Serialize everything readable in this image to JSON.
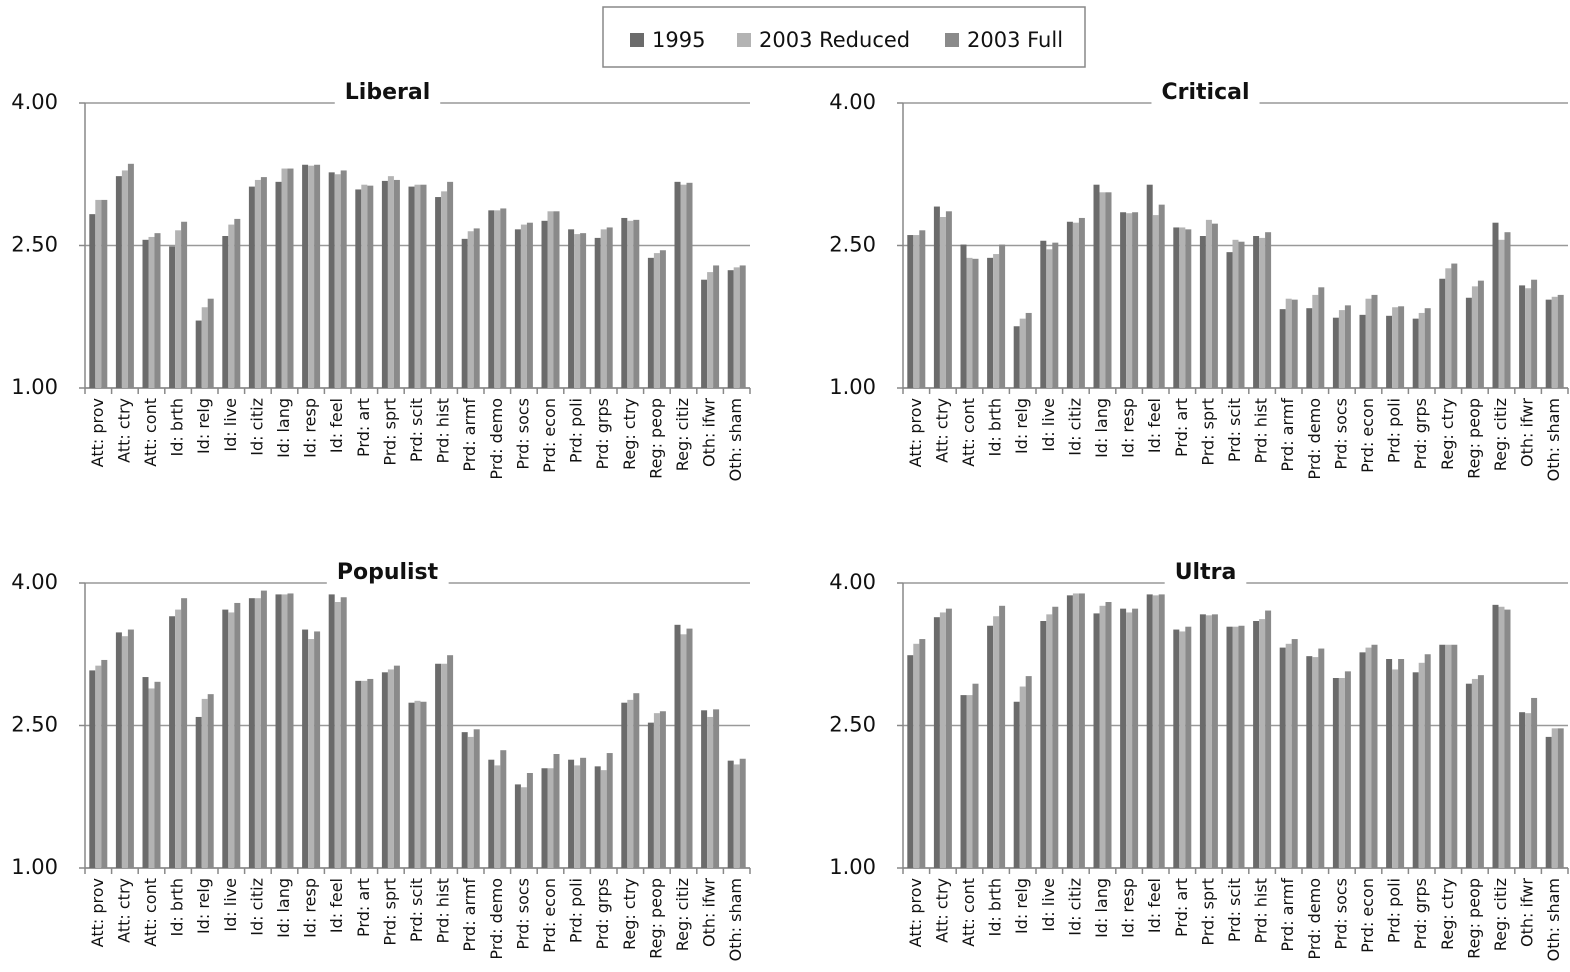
{
  "chart_data": [
    {
      "type": "bar",
      "title": "Liberal",
      "categories": [
        "Att: prov",
        "Att: ctry",
        "Att: cont",
        "Id: brth",
        "Id: relg",
        "Id: live",
        "Id: citiz",
        "Id: lang",
        "Id: resp",
        "Id: feel",
        "Prd: art",
        "Prd: sprt",
        "Prd: scit",
        "Prd: hist",
        "Prd: armf",
        "Prd: demo",
        "Prd: socs",
        "Prd: econ",
        "Prd: poli",
        "Prd: grps",
        "Reg: ctry",
        "Reg: peop",
        "Reg: citiz",
        "Oth: ifwr",
        "Oth: sham"
      ],
      "series": [
        {
          "name": "1995",
          "color": "#6b6b6b",
          "values": [
            2.83,
            3.23,
            2.56,
            2.49,
            1.71,
            2.6,
            3.12,
            3.17,
            3.35,
            3.27,
            3.09,
            3.18,
            3.12,
            3.01,
            2.57,
            2.87,
            2.67,
            2.76,
            2.67,
            2.58,
            2.79,
            2.37,
            3.17,
            2.14,
            2.24
          ]
        },
        {
          "name": "2003 Reduced",
          "color": "#b3b3b3",
          "values": [
            2.98,
            3.29,
            2.59,
            2.66,
            1.85,
            2.72,
            3.19,
            3.31,
            3.34,
            3.25,
            3.14,
            3.23,
            3.14,
            3.07,
            2.65,
            2.87,
            2.72,
            2.86,
            2.62,
            2.67,
            2.76,
            2.42,
            3.14,
            2.22,
            2.27
          ]
        },
        {
          "name": "2003 Full",
          "color": "#8a8a8a",
          "values": [
            2.98,
            3.36,
            2.63,
            2.75,
            1.94,
            2.78,
            3.22,
            3.31,
            3.35,
            3.29,
            3.13,
            3.19,
            3.14,
            3.17,
            2.68,
            2.89,
            2.74,
            2.86,
            2.63,
            2.69,
            2.77,
            2.45,
            3.16,
            2.29,
            2.29
          ]
        }
      ],
      "ylim": [
        1,
        4
      ],
      "yticks": [
        {
          "value": 1,
          "label": "1.00"
        },
        {
          "value": 2.5,
          "label": "2.50"
        },
        {
          "value": 4,
          "label": "4.00"
        }
      ],
      "grid": true
    },
    {
      "type": "bar",
      "title": "Critical",
      "categories": [
        "Att: prov",
        "Att: ctry",
        "Att: cont",
        "Id: brth",
        "Id: relg",
        "Id: live",
        "Id: citiz",
        "Id: lang",
        "Id: resp",
        "Id: feel",
        "Prd: art",
        "Prd: sprt",
        "Prd: scit",
        "Prd: hist",
        "Prd: armf",
        "Prd: demo",
        "Prd: socs",
        "Prd: econ",
        "Prd: poli",
        "Prd: grps",
        "Reg: ctry",
        "Reg: peop",
        "Reg: citiz",
        "Oth: ifwr",
        "Oth: sham"
      ],
      "series": [
        {
          "name": "1995",
          "color": "#6b6b6b",
          "values": [
            2.61,
            2.91,
            2.51,
            2.37,
            1.65,
            2.55,
            2.75,
            3.14,
            2.85,
            3.14,
            2.69,
            2.6,
            2.43,
            2.6,
            1.83,
            1.84,
            1.74,
            1.77,
            1.76,
            1.73,
            2.15,
            1.95,
            2.74,
            2.08,
            1.93
          ]
        },
        {
          "name": "2003 Reduced",
          "color": "#b3b3b3",
          "values": [
            2.61,
            2.8,
            2.37,
            2.41,
            1.73,
            2.46,
            2.74,
            3.06,
            2.84,
            2.82,
            2.69,
            2.77,
            2.56,
            2.58,
            1.94,
            1.98,
            1.82,
            1.94,
            1.85,
            1.79,
            2.26,
            2.07,
            2.56,
            2.05,
            1.96
          ]
        },
        {
          "name": "2003 Full",
          "color": "#8a8a8a",
          "values": [
            2.66,
            2.86,
            2.36,
            2.51,
            1.79,
            2.53,
            2.79,
            3.06,
            2.85,
            2.93,
            2.67,
            2.73,
            2.54,
            2.64,
            1.93,
            2.06,
            1.87,
            1.98,
            1.86,
            1.84,
            2.31,
            2.13,
            2.64,
            2.14,
            1.98
          ]
        }
      ],
      "ylim": [
        1,
        4
      ],
      "yticks": [
        {
          "value": 1,
          "label": "1.00"
        },
        {
          "value": 2.5,
          "label": "2.50"
        },
        {
          "value": 4,
          "label": "4.00"
        }
      ],
      "grid": true
    },
    {
      "type": "bar",
      "title": "Populist",
      "categories": [
        "Att: prov",
        "Att: ctry",
        "Att: cont",
        "Id: brth",
        "Id: relg",
        "Id: live",
        "Id: citiz",
        "Id: lang",
        "Id: resp",
        "Id: feel",
        "Prd: art",
        "Prd: sprt",
        "Prd: scit",
        "Prd: hist",
        "Prd: armf",
        "Prd: demo",
        "Prd: socs",
        "Prd: econ",
        "Prd: poli",
        "Prd: grps",
        "Reg: ctry",
        "Reg: peop",
        "Reg: citiz",
        "Oth: ifwr",
        "Oth: sham"
      ],
      "series": [
        {
          "name": "1995",
          "color": "#6b6b6b",
          "values": [
            3.08,
            3.48,
            3.01,
            3.65,
            2.59,
            3.72,
            3.84,
            3.88,
            3.51,
            3.88,
            2.97,
            3.06,
            2.74,
            3.15,
            2.43,
            2.14,
            1.88,
            2.05,
            2.14,
            2.07,
            2.74,
            2.53,
            3.56,
            2.66,
            2.13
          ]
        },
        {
          "name": "2003 Reduced",
          "color": "#b3b3b3",
          "values": [
            3.13,
            3.44,
            2.89,
            3.72,
            2.78,
            3.69,
            3.84,
            3.88,
            3.41,
            3.8,
            2.97,
            3.09,
            2.76,
            3.15,
            2.38,
            2.08,
            1.85,
            2.05,
            2.08,
            2.03,
            2.77,
            2.63,
            3.46,
            2.59,
            2.09
          ]
        },
        {
          "name": "2003 Full",
          "color": "#8a8a8a",
          "values": [
            3.19,
            3.51,
            2.96,
            3.84,
            2.83,
            3.79,
            3.92,
            3.89,
            3.49,
            3.85,
            2.99,
            3.13,
            2.75,
            3.24,
            2.46,
            2.24,
            2.0,
            2.2,
            2.16,
            2.21,
            2.84,
            2.65,
            3.52,
            2.67,
            2.15
          ]
        }
      ],
      "ylim": [
        1,
        4
      ],
      "yticks": [
        {
          "value": 1,
          "label": "1.00"
        },
        {
          "value": 2.5,
          "label": "2.50"
        },
        {
          "value": 4,
          "label": "4.00"
        }
      ],
      "grid": true
    },
    {
      "type": "bar",
      "title": "Ultra",
      "categories": [
        "Att: prov",
        "Att: ctry",
        "Att: cont",
        "Id: brth",
        "Id: relg",
        "Id: live",
        "Id: citiz",
        "Id: lang",
        "Id: resp",
        "Id: feel",
        "Prd: art",
        "Prd: sprt",
        "Prd: scit",
        "Prd: hist",
        "Prd: armf",
        "Prd: demo",
        "Prd: socs",
        "Prd: econ",
        "Prd: poli",
        "Prd: grps",
        "Reg: ctry",
        "Reg: peop",
        "Reg: citiz",
        "Oth: ifwr",
        "Oth: sham"
      ],
      "series": [
        {
          "name": "1995",
          "color": "#6b6b6b",
          "values": [
            3.24,
            3.64,
            2.82,
            3.55,
            2.75,
            3.6,
            3.87,
            3.68,
            3.73,
            3.88,
            3.51,
            3.67,
            3.54,
            3.6,
            3.32,
            3.23,
            3.0,
            3.27,
            3.2,
            3.06,
            3.35,
            2.94,
            3.77,
            2.64,
            2.38
          ]
        },
        {
          "name": "2003 Reduced",
          "color": "#b3b3b3",
          "values": [
            3.36,
            3.69,
            2.82,
            3.65,
            2.91,
            3.67,
            3.89,
            3.76,
            3.69,
            3.87,
            3.49,
            3.66,
            3.54,
            3.62,
            3.36,
            3.22,
            3.0,
            3.32,
            3.09,
            3.16,
            3.35,
            2.99,
            3.75,
            2.63,
            2.47
          ]
        },
        {
          "name": "2003 Full",
          "color": "#8a8a8a",
          "values": [
            3.41,
            3.73,
            2.94,
            3.76,
            3.02,
            3.75,
            3.89,
            3.8,
            3.73,
            3.88,
            3.54,
            3.67,
            3.55,
            3.71,
            3.41,
            3.31,
            3.07,
            3.35,
            3.2,
            3.25,
            3.35,
            3.03,
            3.72,
            2.79,
            2.47
          ]
        }
      ],
      "ylim": [
        1,
        4
      ],
      "yticks": [
        {
          "value": 1,
          "label": "1.00"
        },
        {
          "value": 2.5,
          "label": "2.50"
        },
        {
          "value": 4,
          "label": "4.00"
        }
      ],
      "grid": true
    }
  ]
}
